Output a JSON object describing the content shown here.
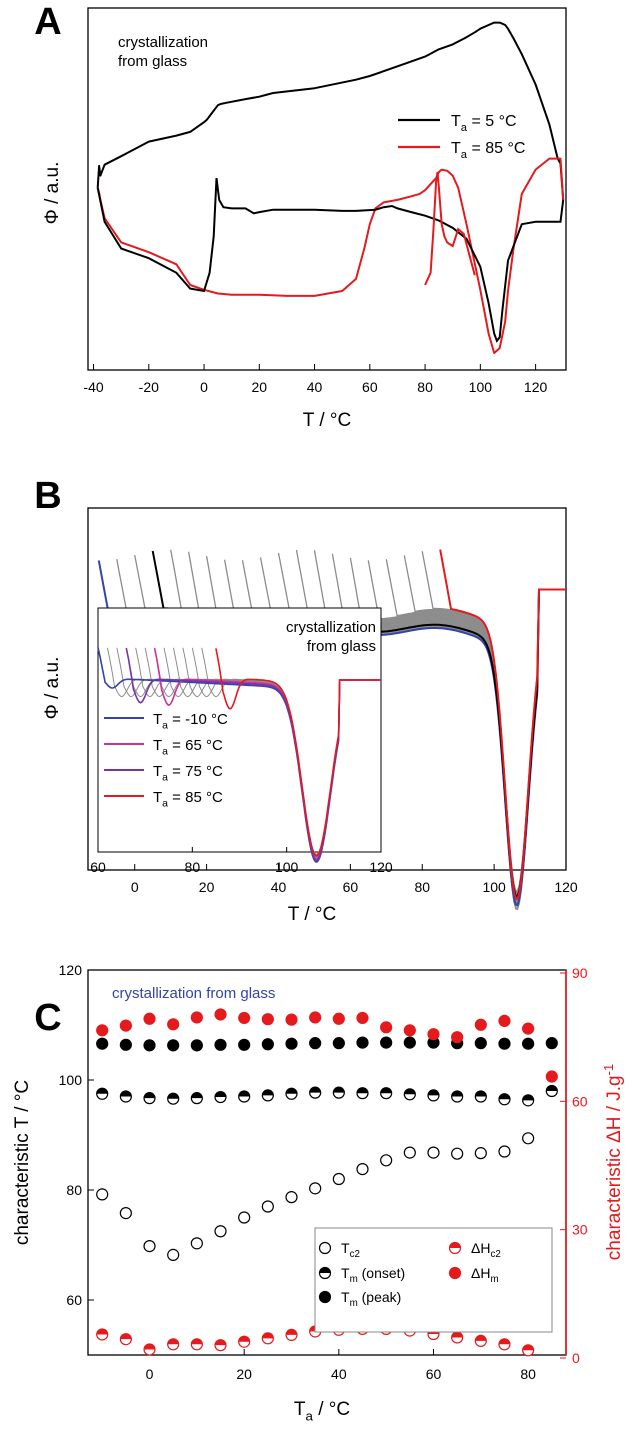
{
  "colors": {
    "black": "#000000",
    "red": "#e41a1c",
    "blue": "#3344aa",
    "gray": "#8c8c8c",
    "magenta": "#cc3399",
    "purple": "#7733aa",
    "c_label": "#3344aa"
  },
  "chart_data": [
    {
      "panel": "A",
      "type": "line",
      "annotation": [
        "crystallization",
        "from glass"
      ],
      "xlabel": "T   /   °C",
      "ylabel": "Φ   /   a.u.",
      "xlim": [
        -42,
        131
      ],
      "xticks": [
        -40,
        -20,
        0,
        20,
        40,
        60,
        80,
        100,
        120
      ],
      "legend": "right",
      "series": [
        {
          "name_main": "T",
          "name_sub": "a",
          "name_rest": " = 5 °C",
          "color": "black",
          "x": [
            -38.5,
            -38,
            -37.5,
            -36,
            -30,
            -20,
            -10,
            -5,
            0,
            1,
            3,
            5,
            6,
            8,
            15,
            20,
            25,
            40,
            55,
            60,
            65,
            70,
            75,
            80,
            85,
            90,
            95,
            98,
            100,
            103,
            105,
            107,
            109,
            110,
            112,
            115,
            120,
            125,
            128,
            129,
            130
          ],
          "y": [
            4.0,
            5.8,
            5.0,
            5.9,
            6.6,
            7.8,
            8.3,
            8.6,
            9.4,
            9.6,
            10.2,
            10.8,
            10.9,
            11.0,
            11.3,
            11.5,
            11.8,
            12.2,
            12.9,
            13.2,
            13.6,
            14.0,
            14.4,
            14.8,
            15.4,
            15.8,
            16.4,
            16.8,
            17.1,
            17.4,
            17.6,
            17.6,
            17.4,
            17.1,
            16.3,
            15.0,
            12.5,
            9.2,
            6.4,
            6.0,
            3.0
          ]
        },
        {
          "name_main": "T",
          "name_sub": "a",
          "name_rest": " = 85 °C",
          "color": "red",
          "x": [
            -38.5,
            -38,
            -37.5,
            -36,
            -30,
            -20,
            -10,
            -5,
            0,
            5,
            10,
            20,
            30,
            40,
            50,
            55,
            58,
            60,
            62,
            65,
            70,
            75,
            78,
            80,
            82,
            84,
            85,
            86,
            88,
            90,
            92,
            95,
            100,
            103,
            105,
            107,
            109,
            110,
            112,
            115,
            120,
            125,
            128,
            129,
            130
          ],
          "y": [
            4.0,
            3.6,
            3.0,
            1.5,
            -0.5,
            -1.3,
            -2.3,
            -4.0,
            -4.4,
            -4.7,
            -4.8,
            -4.8,
            -4.9,
            -4.9,
            -4.5,
            -3.5,
            -1.0,
            1.0,
            2.3,
            2.8,
            3.0,
            3.3,
            3.5,
            3.8,
            4.3,
            4.8,
            5.3,
            5.5,
            5.4,
            5.0,
            4.0,
            1.0,
            -4.4,
            -8.0,
            -9.6,
            -9.2,
            -7.0,
            -4.5,
            -1.0,
            3.5,
            5.5,
            6.4,
            6.4,
            6.4,
            3.0
          ]
        }
      ]
    },
    {
      "panel": "B",
      "type": "line",
      "xlabel": "T   /   °C",
      "ylabel": "Φ   /   a.u.",
      "xlim": [
        -13,
        120
      ],
      "xticks": [
        0,
        20,
        40,
        60,
        80,
        100,
        120
      ],
      "inset": {
        "annotation": [
          "crystallization",
          "from glass"
        ],
        "xlim": [
          60,
          120
        ],
        "xticks": [
          60,
          80,
          100,
          120
        ],
        "legend": [
          {
            "main": "T",
            "sub": "a",
            "rest": " = -10 °C",
            "color": "blue"
          },
          {
            "main": "T",
            "sub": "a",
            "rest": " = 65 °C",
            "color": "magenta"
          },
          {
            "main": "T",
            "sub": "a",
            "rest": " = 75 °C",
            "color": "purple"
          },
          {
            "main": "T",
            "sub": "a",
            "rest": " = 85 °C",
            "color": "red"
          }
        ]
      }
    },
    {
      "panel": "C",
      "type": "scatter",
      "annotation": "crystallization from glass",
      "xlabel_main": "T",
      "xlabel_sub": "a",
      "xlabel_rest": "   /   °C",
      "ylabel": "characteristic T   /   °C",
      "y2label": "characteristic ΔH   /   J.g",
      "y2label_sup": "-1",
      "xlim": [
        -13,
        88
      ],
      "ylim": [
        50,
        120
      ],
      "y2lim": [
        0,
        90
      ],
      "xticks": [
        0,
        20,
        40,
        60,
        80
      ],
      "yticks": [
        60,
        80,
        100,
        120
      ],
      "y2ticks": [
        0,
        30,
        60,
        90
      ],
      "x": [
        -10,
        -5,
        0,
        5,
        10,
        15,
        20,
        25,
        30,
        35,
        40,
        45,
        50,
        55,
        60,
        65,
        70,
        75,
        80
      ],
      "legend": [
        {
          "main": "T",
          "sub": "c2",
          "rest": ""
        },
        {
          "main": "T",
          "sub": "m",
          "rest": " (onset)"
        },
        {
          "main": "T",
          "sub": "m",
          "rest": " (peak)"
        },
        {
          "main": "ΔH",
          "sub": "c2",
          "rest": ""
        },
        {
          "main": "ΔH",
          "sub": "m",
          "rest": ""
        }
      ],
      "series": [
        {
          "name": "Tc2",
          "axis": "left",
          "marker": "open",
          "color": "black",
          "y": [
            79.2,
            75.8,
            69.8,
            68.2,
            70.3,
            72.5,
            75.0,
            77.0,
            78.7,
            80.3,
            82.0,
            83.8,
            85.4,
            86.8,
            86.8,
            86.6,
            86.7,
            87.0,
            89.4
          ]
        },
        {
          "name": "Tm (onset)",
          "axis": "left",
          "marker": "half",
          "color": "black",
          "x": [
            -10,
            -5,
            0,
            5,
            10,
            15,
            20,
            25,
            30,
            35,
            40,
            45,
            50,
            55,
            60,
            65,
            70,
            75,
            80,
            85
          ],
          "y": [
            97.5,
            97.0,
            96.7,
            96.6,
            96.7,
            96.9,
            97.0,
            97.2,
            97.5,
            97.7,
            97.7,
            97.6,
            97.6,
            97.4,
            97.2,
            97.0,
            97.0,
            96.5,
            96.3,
            98.0
          ]
        },
        {
          "name": "Tm (peak)",
          "axis": "left",
          "marker": "filled",
          "color": "black",
          "x": [
            -10,
            -5,
            0,
            5,
            10,
            15,
            20,
            25,
            30,
            35,
            40,
            45,
            50,
            55,
            60,
            65,
            70,
            75,
            80,
            85
          ],
          "y": [
            106.6,
            106.4,
            106.3,
            106.3,
            106.3,
            106.4,
            106.4,
            106.5,
            106.6,
            106.7,
            106.7,
            106.8,
            106.8,
            106.8,
            106.8,
            106.7,
            106.7,
            106.6,
            106.6,
            106.7
          ]
        },
        {
          "name": "ΔHc2",
          "axis": "right",
          "marker": "half",
          "color": "red",
          "y": [
            5.5,
            4.4,
            2.0,
            3.2,
            3.2,
            3.0,
            3.8,
            4.6,
            5.4,
            6.2,
            6.6,
            6.8,
            6.8,
            6.4,
            5.6,
            4.8,
            4.0,
            3.2,
            1.8
          ]
        },
        {
          "name": "ΔHm",
          "axis": "right",
          "marker": "filled",
          "color": "red",
          "x": [
            -10,
            -5,
            0,
            5,
            10,
            15,
            20,
            25,
            30,
            35,
            40,
            45,
            50,
            55,
            60,
            65,
            70,
            75,
            80,
            85
          ],
          "y": [
            76.6,
            77.7,
            79.3,
            78.0,
            79.6,
            80.3,
            79.5,
            79.2,
            79.1,
            79.6,
            79.3,
            79.5,
            77.3,
            76.6,
            75.7,
            75.0,
            77.9,
            78.8,
            77.0,
            65.8
          ]
        }
      ]
    }
  ]
}
